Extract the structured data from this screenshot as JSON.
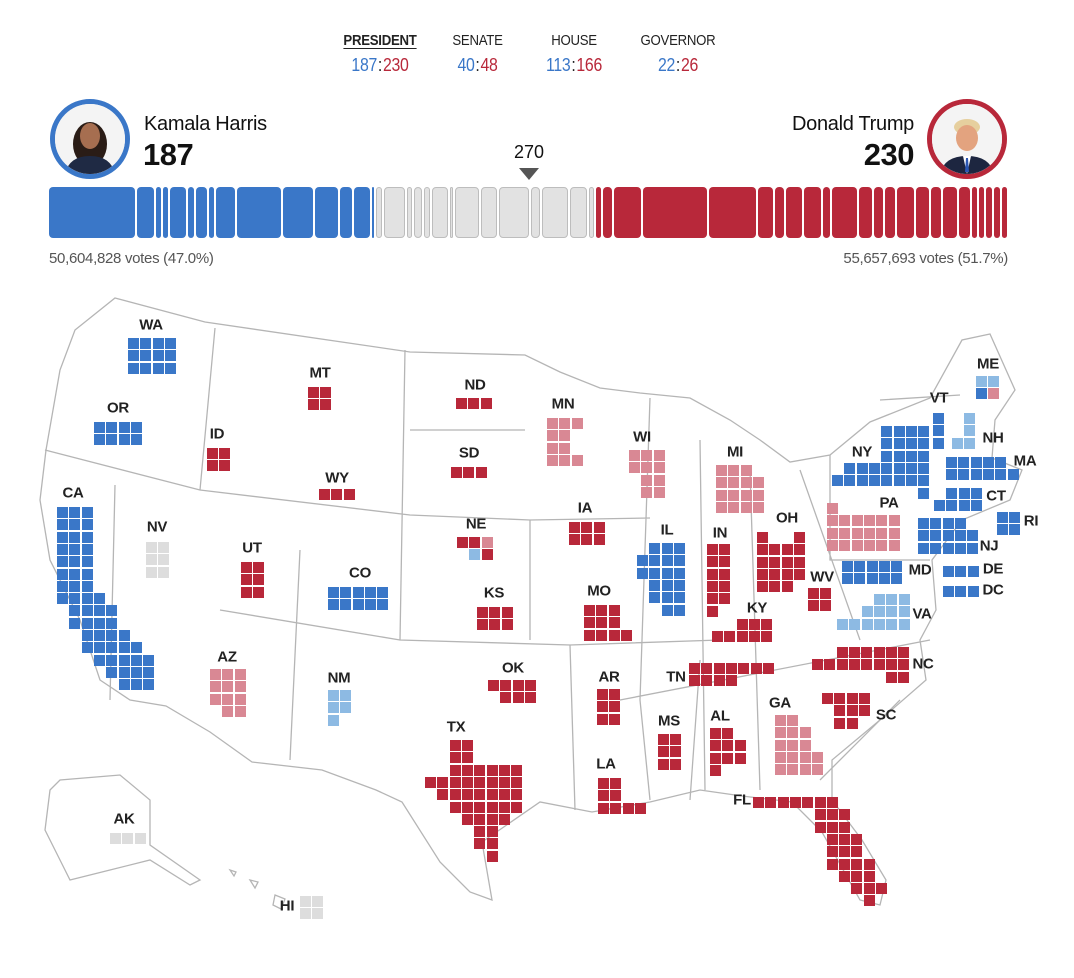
{
  "tabs": [
    {
      "label": "PRESIDENT",
      "dem": "187",
      "rep": "230",
      "active": true
    },
    {
      "label": "SENATE",
      "dem": "40",
      "rep": "48"
    },
    {
      "label": "HOUSE",
      "dem": "113",
      "rep": "166"
    },
    {
      "label": "GOVERNOR",
      "dem": "22",
      "rep": "26"
    }
  ],
  "dem": {
    "name": "Kamala Harris",
    "ev": "187",
    "votes": "50,604,828 votes (47.0%)",
    "color": "#3a77c8"
  },
  "rep": {
    "name": "Donald Trump",
    "ev": "230",
    "votes": "55,657,693 votes (51.7%)",
    "color": "#b8283a"
  },
  "threshold": "270",
  "colors": {
    "dem_called": "#3a77c8",
    "dem_lean": "#8dbae3",
    "rep_called": "#b8283a",
    "rep_lean": "#d98894",
    "uncalled": "#dddddd"
  },
  "bar_segments": [
    {
      "state": "CA",
      "ev": 54,
      "party": "D"
    },
    {
      "state": "MA",
      "ev": 11,
      "party": "D"
    },
    {
      "state": "VT",
      "ev": 3,
      "party": "D"
    },
    {
      "state": "DC",
      "ev": 3,
      "party": "D"
    },
    {
      "state": "MD",
      "ev": 10,
      "party": "D"
    },
    {
      "state": "RI",
      "ev": 4,
      "party": "D"
    },
    {
      "state": "CT",
      "ev": 7,
      "party": "D"
    },
    {
      "state": "DE",
      "ev": 3,
      "party": "D"
    },
    {
      "state": "WA",
      "ev": 12,
      "party": "D"
    },
    {
      "state": "NY",
      "ev": 28,
      "party": "D"
    },
    {
      "state": "IL",
      "ev": 19,
      "party": "D"
    },
    {
      "state": "NJ",
      "ev": 14,
      "party": "D"
    },
    {
      "state": "OR",
      "ev": 8,
      "party": "D"
    },
    {
      "state": "CO",
      "ev": 10,
      "party": "D"
    },
    {
      "state": "ME-1",
      "ev": 1,
      "party": "D"
    },
    {
      "state": "HI",
      "ev": 4,
      "party": "u"
    },
    {
      "state": "VA",
      "ev": 13,
      "party": "u"
    },
    {
      "state": "ME",
      "ev": 3,
      "party": "u"
    },
    {
      "state": "NM",
      "ev": 5,
      "party": "u"
    },
    {
      "state": "NH",
      "ev": 4,
      "party": "u"
    },
    {
      "state": "MN",
      "ev": 10,
      "party": "u"
    },
    {
      "state": "NE-2",
      "ev": 2,
      "party": "u"
    },
    {
      "state": "MI",
      "ev": 15,
      "party": "u"
    },
    {
      "state": "WI",
      "ev": 10,
      "party": "u"
    },
    {
      "state": "PA",
      "ev": 19,
      "party": "u"
    },
    {
      "state": "NV",
      "ev": 6,
      "party": "u"
    },
    {
      "state": "GA",
      "ev": 16,
      "party": "u"
    },
    {
      "state": "AZ",
      "ev": 11,
      "party": "u"
    },
    {
      "state": "AK",
      "ev": 3,
      "party": "u"
    },
    {
      "state": "NE",
      "ev": 3,
      "party": "R"
    },
    {
      "state": "IA",
      "ev": 6,
      "party": "R"
    },
    {
      "state": "OH",
      "ev": 17,
      "party": "R"
    },
    {
      "state": "TX",
      "ev": 40,
      "party": "R"
    },
    {
      "state": "FL",
      "ev": 30,
      "party": "R"
    },
    {
      "state": "SC",
      "ev": 9,
      "party": "R"
    },
    {
      "state": "KS",
      "ev": 6,
      "party": "R"
    },
    {
      "state": "MO",
      "ev": 10,
      "party": "R"
    },
    {
      "state": "IN",
      "ev": 11,
      "party": "R"
    },
    {
      "state": "MT",
      "ev": 4,
      "party": "R"
    },
    {
      "state": "NC",
      "ev": 16,
      "party": "R"
    },
    {
      "state": "LA",
      "ev": 8,
      "party": "R"
    },
    {
      "state": "UT",
      "ev": 6,
      "party": "R"
    },
    {
      "state": "MS",
      "ev": 6,
      "party": "R"
    },
    {
      "state": "TN",
      "ev": 11,
      "party": "R"
    },
    {
      "state": "KY",
      "ev": 8,
      "party": "R"
    },
    {
      "state": "AR",
      "ev": 6,
      "party": "R"
    },
    {
      "state": "AL",
      "ev": 9,
      "party": "R"
    },
    {
      "state": "OK",
      "ev": 7,
      "party": "R"
    },
    {
      "state": "SD",
      "ev": 3,
      "party": "R"
    },
    {
      "state": "ND",
      "ev": 3,
      "party": "R"
    },
    {
      "state": "ID",
      "ev": 4,
      "party": "R"
    },
    {
      "state": "WV",
      "ev": 4,
      "party": "R"
    },
    {
      "state": "WY",
      "ev": 3,
      "party": "R"
    }
  ],
  "states": {
    "WA": {
      "ev": 12,
      "status": "dem_called"
    },
    "OR": {
      "ev": 8,
      "status": "dem_called"
    },
    "CA": {
      "ev": 54,
      "status": "dem_called"
    },
    "NV": {
      "ev": 6,
      "status": "uncalled"
    },
    "ID": {
      "ev": 4,
      "status": "rep_called"
    },
    "MT": {
      "ev": 4,
      "status": "rep_called"
    },
    "WY": {
      "ev": 3,
      "status": "rep_called"
    },
    "UT": {
      "ev": 6,
      "status": "rep_called"
    },
    "CO": {
      "ev": 10,
      "status": "dem_called"
    },
    "AZ": {
      "ev": 11,
      "status": "rep_lean"
    },
    "NM": {
      "ev": 5,
      "status": "dem_lean"
    },
    "ND": {
      "ev": 3,
      "status": "rep_called"
    },
    "SD": {
      "ev": 3,
      "status": "rep_called"
    },
    "NE": {
      "ev": 5,
      "status": "mixed"
    },
    "KS": {
      "ev": 6,
      "status": "rep_called"
    },
    "OK": {
      "ev": 7,
      "status": "rep_called"
    },
    "TX": {
      "ev": 40,
      "status": "rep_called"
    },
    "MN": {
      "ev": 10,
      "status": "rep_lean"
    },
    "IA": {
      "ev": 6,
      "status": "rep_called"
    },
    "MO": {
      "ev": 10,
      "status": "rep_called"
    },
    "AR": {
      "ev": 6,
      "status": "rep_called"
    },
    "LA": {
      "ev": 8,
      "status": "rep_called"
    },
    "WI": {
      "ev": 10,
      "status": "rep_lean"
    },
    "IL": {
      "ev": 19,
      "status": "dem_called"
    },
    "MI": {
      "ev": 15,
      "status": "rep_lean"
    },
    "IN": {
      "ev": 11,
      "status": "rep_called"
    },
    "OH": {
      "ev": 17,
      "status": "rep_called"
    },
    "KY": {
      "ev": 8,
      "status": "rep_called"
    },
    "TN": {
      "ev": 11,
      "status": "rep_called"
    },
    "MS": {
      "ev": 6,
      "status": "rep_called"
    },
    "AL": {
      "ev": 9,
      "status": "rep_called"
    },
    "GA": {
      "ev": 16,
      "status": "rep_lean"
    },
    "FL": {
      "ev": 30,
      "status": "rep_called"
    },
    "SC": {
      "ev": 9,
      "status": "rep_called"
    },
    "NC": {
      "ev": 16,
      "status": "rep_called"
    },
    "WV": {
      "ev": 4,
      "status": "rep_called"
    },
    "VA": {
      "ev": 13,
      "status": "dem_lean"
    },
    "PA": {
      "ev": 19,
      "status": "rep_lean"
    },
    "MD": {
      "ev": 10,
      "status": "dem_called"
    },
    "DE": {
      "ev": 3,
      "status": "dem_called"
    },
    "DC": {
      "ev": 3,
      "status": "dem_called"
    },
    "NJ": {
      "ev": 14,
      "status": "dem_called"
    },
    "NY": {
      "ev": 28,
      "status": "dem_called"
    },
    "CT": {
      "ev": 7,
      "status": "dem_called"
    },
    "RI": {
      "ev": 4,
      "status": "dem_called"
    },
    "MA": {
      "ev": 11,
      "status": "dem_called"
    },
    "VT": {
      "ev": 3,
      "status": "dem_called"
    },
    "NH": {
      "ev": 4,
      "status": "dem_lean"
    },
    "ME": {
      "ev": 4,
      "status": "mixed"
    },
    "AK": {
      "ev": 3,
      "status": "uncalled"
    },
    "HI": {
      "ev": 4,
      "status": "uncalled"
    }
  }
}
